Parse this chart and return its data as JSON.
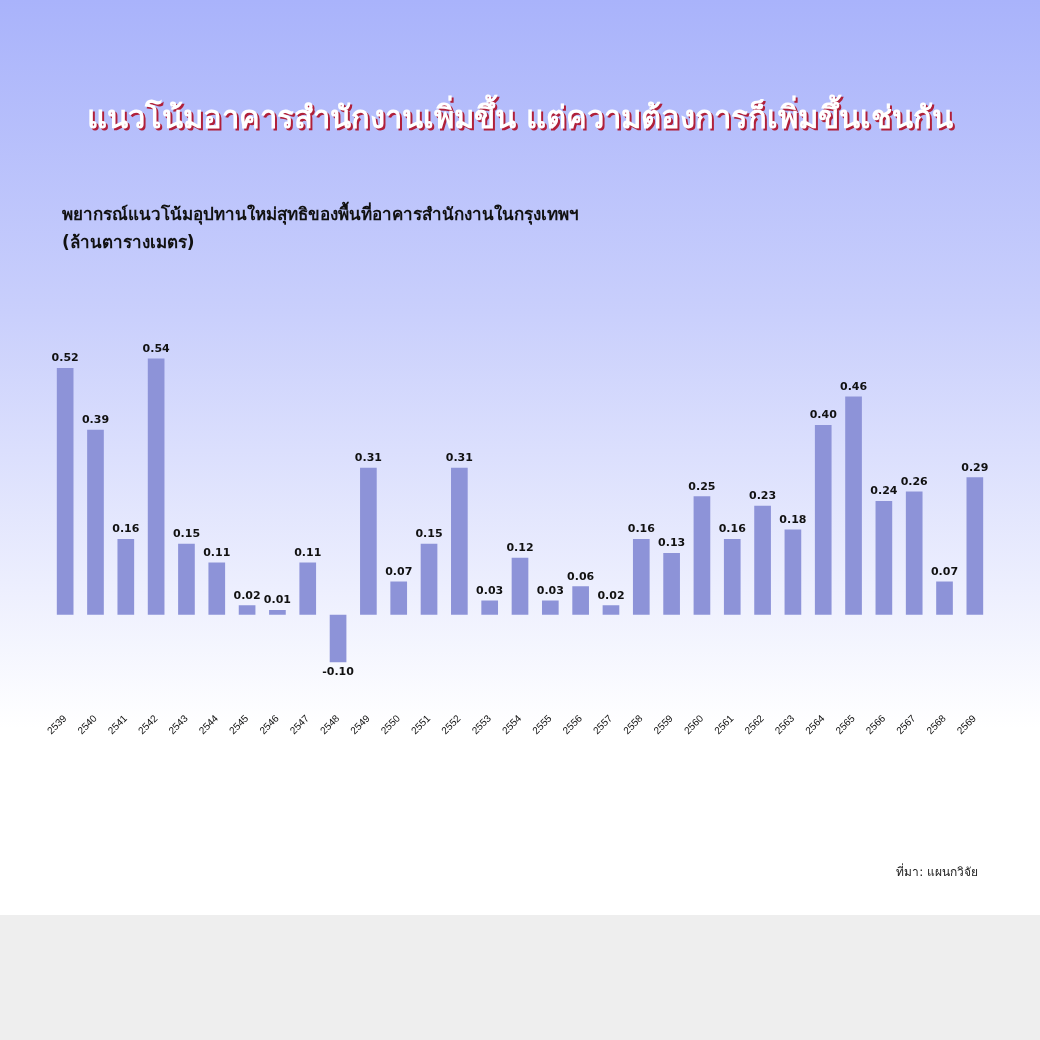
{
  "chart_data": {
    "type": "bar",
    "title": "แนวโน้มอาคารสำนักงานเพิ่มขึ้น แต่ความต้องการก็เพิ่มขึ้นเช่นกัน",
    "subtitle": "พยากรณ์แนวโน้มอุปทานใหม่สุทธิของพื้นที่อาคารสำนักงานในกรุงเทพฯ",
    "categories": [
      "2539",
      "2540",
      "2541",
      "2542",
      "2543",
      "2544",
      "2545",
      "2546",
      "2547",
      "2548",
      "2549",
      "2550",
      "2551",
      "2552",
      "2553",
      "2554",
      "2555",
      "2556",
      "2557",
      "2558",
      "2559",
      "2560",
      "2561",
      "2562",
      "2563",
      "2564",
      "2565",
      "2566",
      "2567",
      "2568",
      "2569"
    ],
    "values": [
      0.52,
      0.39,
      0.16,
      0.54,
      0.15,
      0.11,
      0.02,
      0.01,
      0.11,
      -0.1,
      0.31,
      0.07,
      0.15,
      0.31,
      0.03,
      0.12,
      0.03,
      0.06,
      0.02,
      0.16,
      0.13,
      0.25,
      0.16,
      0.23,
      0.18,
      0.4,
      0.46,
      0.24,
      0.26,
      0.07,
      0.29
    ],
    "value_labels": [
      "0.52",
      "0.39",
      "0.16",
      "0.54",
      "0.15",
      "0.11",
      "0.02",
      "0.01",
      "0.11",
      "-0.10",
      "0.31",
      "0.07",
      "0.15",
      "0.31",
      "0.03",
      "0.12",
      "0.03",
      "0.06",
      "0.02",
      "0.16",
      "0.13",
      "0.25",
      "0.16",
      "0.23",
      "0.18",
      "0.40",
      "0.46",
      "0.24",
      "0.26",
      "0.07",
      "0.29"
    ],
    "color": "#8d93d8",
    "grid": false,
    "legend": false,
    "annotations": [
      "(ล้านตารางเมตร)",
      "ที่มา: แผนกวิจัย"
    ]
  }
}
